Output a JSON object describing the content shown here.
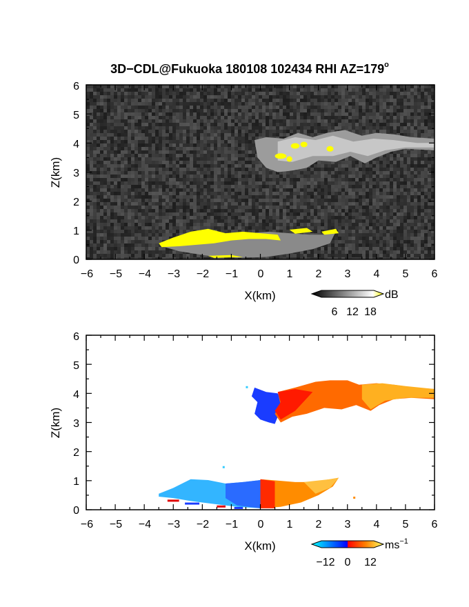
{
  "figure": {
    "title_main": "3D−CDL@Fukuoka 180108 102434 RHI AZ=179",
    "title_degree": "o"
  },
  "chart_data": [
    {
      "type": "heatmap",
      "name": "reflectivity",
      "xlabel": "X(km)",
      "ylabel": "Z(km)",
      "xlim": [
        -6,
        6
      ],
      "ylim": [
        0,
        6
      ],
      "xticks": [
        "−6",
        "−5",
        "−4",
        "−3",
        "−2",
        "−1",
        "0",
        "1",
        "2",
        "3",
        "4",
        "5",
        "6"
      ],
      "yticks": [
        "0",
        "1",
        "2",
        "3",
        "4",
        "5",
        "6"
      ],
      "colorbar": {
        "unit": "dB",
        "ticks": [
          "6",
          "12",
          "18"
        ],
        "range": [
          0,
          21
        ]
      },
      "background": "noise, grayscale",
      "regions": [
        {
          "feature": "upper cloud layer",
          "x": [
            0.7,
            6.0
          ],
          "z": [
            3.0,
            4.5
          ],
          "value_db": 12
        },
        {
          "feature": "lower echo",
          "x": [
            -3.5,
            2.7
          ],
          "z": [
            0.0,
            1.1
          ],
          "value_db": 18
        }
      ]
    },
    {
      "type": "heatmap",
      "name": "doppler velocity",
      "xlabel": "X(km)",
      "ylabel": "Z(km)",
      "xlim": [
        -6,
        6
      ],
      "ylim": [
        0,
        6
      ],
      "xticks": [
        "−6",
        "−5",
        "−4",
        "−3",
        "−2",
        "−1",
        "0",
        "1",
        "2",
        "3",
        "4",
        "5",
        "6"
      ],
      "yticks": [
        "0",
        "1",
        "2",
        "3",
        "4",
        "5",
        "6"
      ],
      "colorbar": {
        "unit_base": "ms",
        "unit_exp": "−1",
        "ticks": [
          "−12",
          "0",
          "12"
        ],
        "range": [
          -15,
          15
        ]
      },
      "regions": [
        {
          "feature": "upper layer, approaching side",
          "x": [
            -0.3,
            0.8
          ],
          "z": [
            2.9,
            4.2
          ],
          "value_ms": -13
        },
        {
          "feature": "upper layer, receding side",
          "x": [
            0.6,
            6.0
          ],
          "z": [
            3.0,
            4.5
          ],
          "value_ms": 8
        },
        {
          "feature": "lower layer, approaching side",
          "x": [
            -3.5,
            0.0
          ],
          "z": [
            0.0,
            1.1
          ],
          "value_ms": -9
        },
        {
          "feature": "lower layer, receding side",
          "x": [
            0.0,
            2.7
          ],
          "z": [
            0.0,
            1.1
          ],
          "value_ms": 7
        }
      ]
    }
  ],
  "colors": {
    "noise_dark": "#2a2a2a",
    "noise_light": "#4a4a4a",
    "echo_gray": "#bdbdbd",
    "echo_yellow": "#ffff00",
    "vel_blue": "#1a3cff",
    "vel_cyan": "#33ccff",
    "vel_red": "#ff1a00",
    "vel_orange": "#ff9900",
    "vel_yellow": "#ffcc33"
  }
}
